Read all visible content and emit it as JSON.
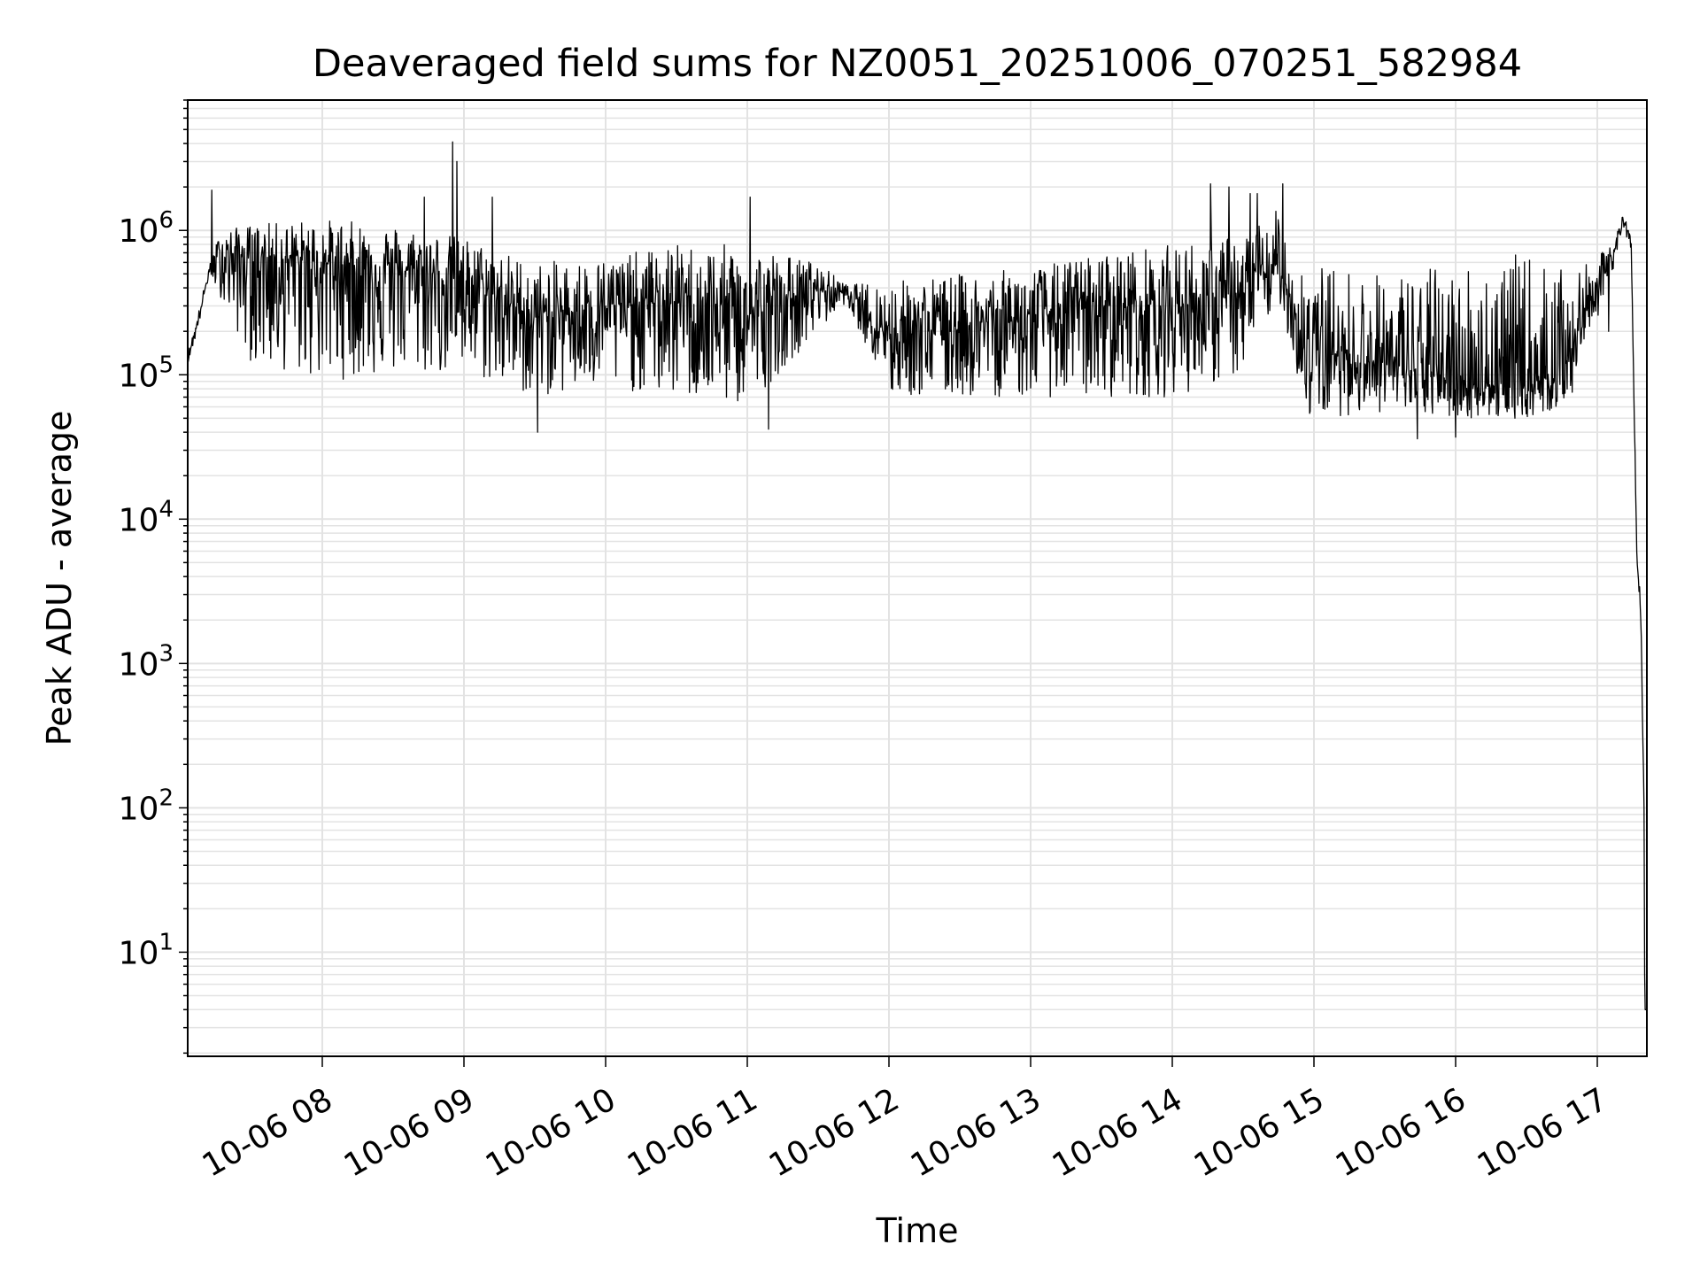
{
  "chart_data": {
    "type": "line",
    "title": "Deaveraged field sums for NZ0051_20251006_070251_582984",
    "xlabel": "Time",
    "ylabel": "Peak ADU - average",
    "yscale": "log",
    "ylim": [
      1.9,
      8000000
    ],
    "xlim_hours": [
      7.05,
      17.35
    ],
    "grid": true,
    "line_color": "#000000",
    "grid_color": "#e3e3e3",
    "y_ticks": [
      {
        "value": 10,
        "base": "10",
        "exp": "1"
      },
      {
        "value": 100,
        "base": "10",
        "exp": "2"
      },
      {
        "value": 1000,
        "base": "10",
        "exp": "3"
      },
      {
        "value": 10000,
        "base": "10",
        "exp": "4"
      },
      {
        "value": 100000,
        "base": "10",
        "exp": "5"
      },
      {
        "value": 1000000,
        "base": "10",
        "exp": "6"
      }
    ],
    "x_ticks": [
      {
        "hour": 8,
        "label": "10-06 08"
      },
      {
        "hour": 9,
        "label": "10-06 09"
      },
      {
        "hour": 10,
        "label": "10-06 10"
      },
      {
        "hour": 11,
        "label": "10-06 11"
      },
      {
        "hour": 12,
        "label": "10-06 12"
      },
      {
        "hour": 13,
        "label": "10-06 13"
      },
      {
        "hour": 14,
        "label": "10-06 14"
      },
      {
        "hour": 15,
        "label": "10-06 15"
      },
      {
        "hour": 16,
        "label": "10-06 16"
      },
      {
        "hour": 17,
        "label": "10-06 17"
      }
    ],
    "series": [
      {
        "name": "Peak ADU - average",
        "envelope": [
          {
            "hour": 7.05,
            "low": 120000,
            "mid": 130000,
            "high": 140000
          },
          {
            "hour": 7.12,
            "low": 200000,
            "mid": 230000,
            "high": 260000
          },
          {
            "hour": 7.2,
            "low": 480000,
            "mid": 520000,
            "high": 560000
          },
          {
            "hour": 7.28,
            "low": 350000,
            "mid": 700000,
            "high": 1000000
          },
          {
            "hour": 7.5,
            "low": 120000,
            "mid": 650000,
            "high": 1100000
          },
          {
            "hour": 8.0,
            "low": 90000,
            "mid": 600000,
            "high": 1200000
          },
          {
            "hour": 8.5,
            "low": 100000,
            "mid": 550000,
            "high": 1100000
          },
          {
            "hour": 9.0,
            "low": 100000,
            "mid": 450000,
            "high": 900000
          },
          {
            "hour": 9.5,
            "low": 70000,
            "mid": 250000,
            "high": 600000
          },
          {
            "hour": 10.0,
            "low": 80000,
            "mid": 300000,
            "high": 650000
          },
          {
            "hour": 10.5,
            "low": 70000,
            "mid": 320000,
            "high": 800000
          },
          {
            "hour": 11.0,
            "low": 60000,
            "mid": 250000,
            "high": 800000
          },
          {
            "hour": 11.5,
            "low": 200000,
            "mid": 400000,
            "high": 600000
          },
          {
            "hour": 11.7,
            "low": 320000,
            "mid": 370000,
            "high": 420000
          },
          {
            "hour": 12.0,
            "low": 70000,
            "mid": 200000,
            "high": 450000
          },
          {
            "hour": 12.5,
            "low": 70000,
            "mid": 220000,
            "high": 500000
          },
          {
            "hour": 13.0,
            "low": 70000,
            "mid": 250000,
            "high": 550000
          },
          {
            "hour": 13.5,
            "low": 70000,
            "mid": 300000,
            "high": 700000
          },
          {
            "hour": 14.0,
            "low": 70000,
            "mid": 300000,
            "high": 800000
          },
          {
            "hour": 14.5,
            "low": 100000,
            "mid": 350000,
            "high": 1000000
          },
          {
            "hour": 14.75,
            "low": 350000,
            "mid": 600000,
            "high": 1400000
          },
          {
            "hour": 14.95,
            "low": 50000,
            "mid": 150000,
            "high": 600000
          },
          {
            "hour": 15.5,
            "low": 55000,
            "mid": 120000,
            "high": 500000
          },
          {
            "hour": 16.0,
            "low": 50000,
            "mid": 90000,
            "high": 600000
          },
          {
            "hour": 16.5,
            "low": 50000,
            "mid": 80000,
            "high": 700000
          },
          {
            "hour": 16.8,
            "low": 60000,
            "mid": 130000,
            "high": 500000
          },
          {
            "hour": 16.95,
            "low": 200000,
            "mid": 350000,
            "high": 600000
          },
          {
            "hour": 17.1,
            "low": 400000,
            "mid": 600000,
            "high": 800000
          },
          {
            "hour": 17.18,
            "low": 1100000,
            "mid": 1250000,
            "high": 1350000
          },
          {
            "hour": 17.24,
            "low": 700000,
            "mid": 800000,
            "high": 900000
          },
          {
            "hour": 17.28,
            "low": 4500,
            "mid": 5000,
            "high": 5500
          },
          {
            "hour": 17.3,
            "low": 2700,
            "mid": 3000,
            "high": 3300
          },
          {
            "hour": 17.31,
            "low": 1500,
            "mid": 1600,
            "high": 1700
          },
          {
            "hour": 17.32,
            "low": 300,
            "mid": 350,
            "high": 400
          },
          {
            "hour": 17.33,
            "low": 100,
            "mid": 110,
            "high": 120
          },
          {
            "hour": 17.335,
            "low": 4,
            "mid": 4,
            "high": 4
          },
          {
            "hour": 17.35,
            "low": 4,
            "mid": 4,
            "high": 4
          }
        ],
        "spikes": [
          {
            "hour": 7.22,
            "value": 1900000
          },
          {
            "hour": 8.92,
            "value": 4100000
          },
          {
            "hour": 8.95,
            "value": 3000000
          },
          {
            "hour": 8.72,
            "value": 1700000
          },
          {
            "hour": 9.2,
            "value": 1700000
          },
          {
            "hour": 11.02,
            "value": 1700000
          },
          {
            "hour": 14.27,
            "value": 2100000
          },
          {
            "hour": 14.4,
            "value": 2000000
          },
          {
            "hour": 14.55,
            "value": 1800000
          },
          {
            "hour": 14.6,
            "value": 1800000
          },
          {
            "hour": 14.78,
            "value": 2100000
          },
          {
            "hour": 9.52,
            "value": 40000
          },
          {
            "hour": 11.15,
            "value": 42000
          },
          {
            "hour": 15.73,
            "value": 36000
          },
          {
            "hour": 16.0,
            "value": 37000
          },
          {
            "hour": 17.08,
            "value": 200000
          }
        ]
      }
    ]
  }
}
